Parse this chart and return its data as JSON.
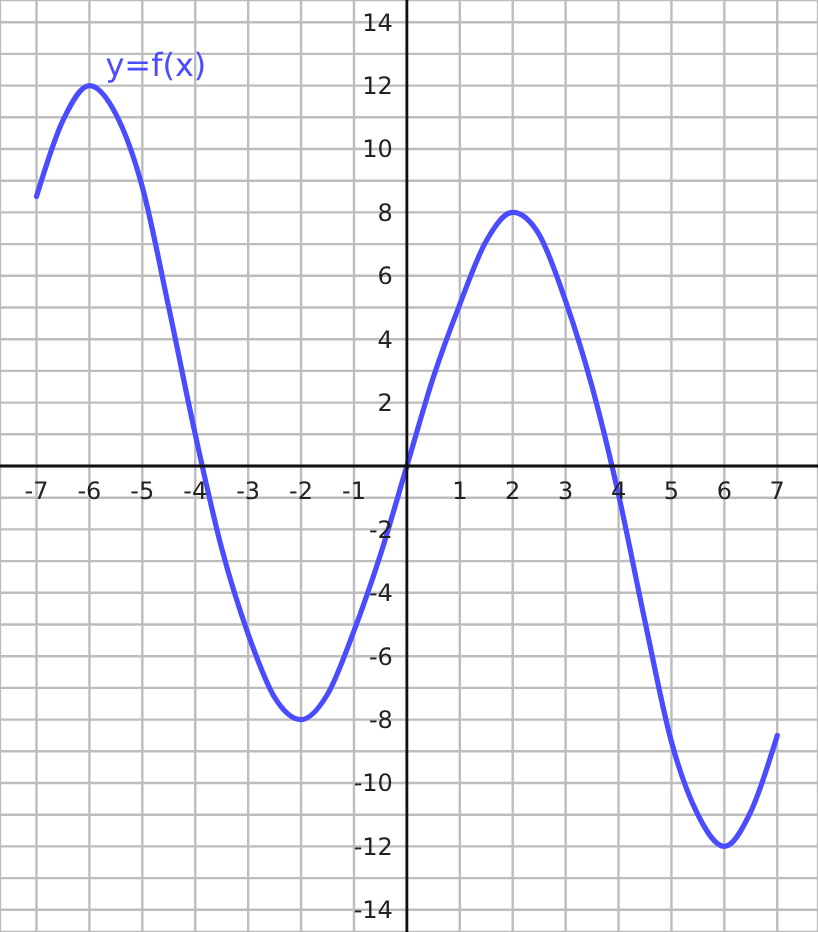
{
  "chart_data": {
    "type": "line",
    "x": [
      -7,
      -6.5,
      -6,
      -5.5,
      -5,
      -4.5,
      -4,
      -3.5,
      -3,
      -2.5,
      -2,
      -1.5,
      -1,
      -0.5,
      0,
      0.5,
      1,
      1.5,
      2,
      2.5,
      3,
      3.5,
      4,
      4.5,
      5,
      5.5,
      6,
      6.5,
      7
    ],
    "series": [
      {
        "name": "y=f(x)",
        "color": "#4b4bff",
        "values": [
          8.5,
          10.9,
          12,
          11.1,
          8.8,
          5.0,
          1.0,
          -2.6,
          -5.3,
          -7.3,
          -8,
          -7.2,
          -5.2,
          -2.8,
          0,
          2.8,
          5.1,
          7.1,
          8,
          7.3,
          5.2,
          2.5,
          -0.9,
          -4.9,
          -8.7,
          -11.0,
          -12,
          -10.9,
          -8.5
        ]
      }
    ],
    "xlim": [
      -7.69,
      7.77
    ],
    "ylim": [
      -14.7,
      14.7
    ],
    "xticks": [
      -7,
      -6,
      -5,
      -4,
      -3,
      -2,
      -1,
      {
        "value": 0,
        "label": null
      },
      1,
      2,
      3,
      4,
      5,
      6,
      7
    ],
    "yticks": [
      -14,
      {
        "value": -13,
        "label": null
      },
      -12,
      {
        "value": -11,
        "label": null
      },
      -10,
      {
        "value": -9,
        "label": null
      },
      -8,
      {
        "value": -7,
        "label": null
      },
      -6,
      {
        "value": -5,
        "label": null
      },
      -4,
      {
        "value": -3,
        "label": null
      },
      -2,
      {
        "value": -1,
        "label": null
      },
      {
        "value": 0,
        "label": null
      },
      {
        "value": 1,
        "label": null
      },
      2,
      {
        "value": 3,
        "label": null
      },
      4,
      {
        "value": 5,
        "label": null
      },
      6,
      {
        "value": 7,
        "label": null
      },
      8,
      {
        "value": 9,
        "label": null
      },
      10,
      {
        "value": 11,
        "label": null
      },
      12,
      {
        "value": 13,
        "label": null
      },
      14
    ],
    "grid": true
  }
}
